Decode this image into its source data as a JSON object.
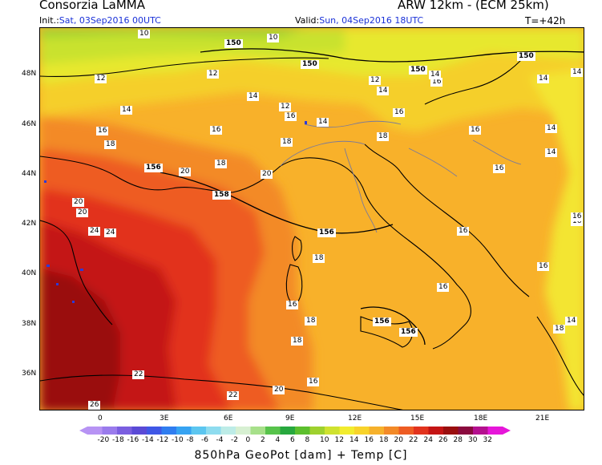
{
  "header": {
    "title_left": "Consorzia LaMMA",
    "title_right": "ARW 12km - (ECM 25km)",
    "init_label": "Init.:",
    "init_value": "Sat, 03Sep2016 00UTC",
    "valid_label": "Valid:",
    "valid_value": "Sun, 04Sep2016 18UTC",
    "lead_time": "T=+42h"
  },
  "map": {
    "lat_labels": [
      "48N",
      "46N",
      "44N",
      "42N",
      "40N",
      "38N",
      "36N"
    ],
    "lon_labels": [
      "0",
      "3E",
      "6E",
      "9E",
      "12E",
      "15E",
      "18E",
      "21E"
    ],
    "temp_labels": [
      "10",
      "10",
      "12",
      "12",
      "12",
      "14",
      "14",
      "14",
      "12",
      "16",
      "16",
      "16",
      "16",
      "14",
      "14",
      "16",
      "16",
      "18",
      "18",
      "18",
      "14",
      "20",
      "20",
      "20",
      "18",
      "16",
      "16",
      "16",
      "20",
      "22",
      "24",
      "18",
      "16",
      "16",
      "18",
      "18",
      "18",
      "14",
      "16",
      "24",
      "22",
      "20",
      "26",
      "14",
      "14",
      "16",
      "16",
      "14"
    ],
    "geopot_labels": [
      "150",
      "150",
      "150",
      "150",
      "156",
      "158",
      "156",
      "156",
      "156"
    ]
  },
  "colorbar": {
    "labels": [
      "-20",
      "-18",
      "-16",
      "-14",
      "-12",
      "-10",
      "-8",
      "-6",
      "-4",
      "-2",
      "0",
      "2",
      "4",
      "6",
      "8",
      "10",
      "12",
      "14",
      "16",
      "18",
      "20",
      "22",
      "24",
      "26",
      "28",
      "30",
      "32"
    ],
    "colors": [
      "#b793f4",
      "#9a7bec",
      "#7a5ee0",
      "#5a4ad6",
      "#3f57e6",
      "#2f7df0",
      "#36a3f2",
      "#5cc6f0",
      "#8edcef",
      "#bdece7",
      "#d7f0d2",
      "#a7e08a",
      "#57c34b",
      "#27a83e",
      "#5cbf2d",
      "#9ed12e",
      "#cfe22f",
      "#f2ec2e",
      "#f8d32a",
      "#f6b12b",
      "#f38a28",
      "#ee5c23",
      "#e2331d",
      "#c41414",
      "#9a0e0e",
      "#8a0a3e",
      "#b4108f",
      "#e616d9"
    ]
  },
  "footer": "850hPa GeoPot [dam] + Temp [C]"
}
